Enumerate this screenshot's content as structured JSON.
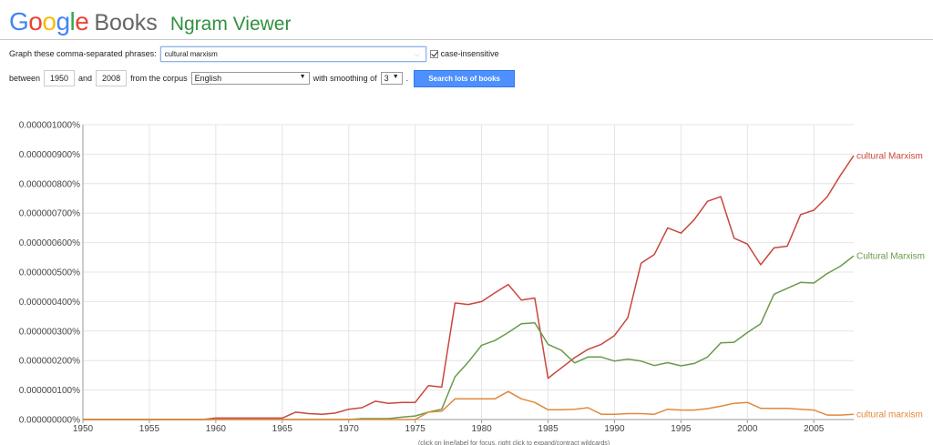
{
  "header": {
    "logo_letters": [
      {
        "ch": "G",
        "color": "#4285f4"
      },
      {
        "ch": "o",
        "color": "#ea4335"
      },
      {
        "ch": "o",
        "color": "#fbbc05"
      },
      {
        "ch": "g",
        "color": "#4285f4"
      },
      {
        "ch": "l",
        "color": "#34a853"
      },
      {
        "ch": "e",
        "color": "#ea4335"
      }
    ],
    "books": "Books",
    "title": "Ngram Viewer"
  },
  "form": {
    "phrases_label": "Graph these comma-separated phrases:",
    "phrases_value": "cultural marxism",
    "case_insensitive_label": "case-insensitive",
    "case_insensitive_checked": true,
    "between_label": "between",
    "year_start": "1950",
    "and_label": "and",
    "year_end": "2008",
    "corpus_label": "from the corpus",
    "corpus_value": "English",
    "smoothing_label": "with smoothing of",
    "smoothing_value": "3",
    "smoothing_suffix": ".",
    "search_button": "Search lots of books"
  },
  "chart_data": {
    "type": "line",
    "title": "",
    "xlabel": "",
    "ylabel": "",
    "xlim": [
      1950,
      2008
    ],
    "ylim": [
      0,
      1e-06
    ],
    "grid": true,
    "x_ticks": [
      1950,
      1955,
      1960,
      1965,
      1970,
      1975,
      1980,
      1985,
      1990,
      1995,
      2000,
      2005
    ],
    "y_ticks": [
      "0.000000000%",
      "0.000000100%",
      "0.000000200%",
      "0.000000300%",
      "0.000000400%",
      "0.000000500%",
      "0.000000600%",
      "0.000000700%",
      "0.000000800%",
      "0.000000900%",
      "0.000001000%"
    ],
    "y_tick_values": [
      0,
      1e-07,
      2e-07,
      3e-07,
      4e-07,
      5e-07,
      6e-07,
      7e-07,
      8e-07,
      9e-07,
      1e-06
    ],
    "series": [
      {
        "name": "cultural Marxism",
        "color": "#c8473d",
        "points": [
          [
            1950,
            0
          ],
          [
            1955,
            0
          ],
          [
            1959,
            0
          ],
          [
            1960,
            5e-09
          ],
          [
            1962,
            5e-09
          ],
          [
            1965,
            5e-09
          ],
          [
            1966,
            2.5e-08
          ],
          [
            1967,
            2e-08
          ],
          [
            1968,
            1.8e-08
          ],
          [
            1969,
            2.2e-08
          ],
          [
            1970,
            3.5e-08
          ],
          [
            1971,
            4e-08
          ],
          [
            1972,
            6.2e-08
          ],
          [
            1973,
            5.5e-08
          ],
          [
            1974,
            5.8e-08
          ],
          [
            1975,
            5.8e-08
          ],
          [
            1976,
            1.15e-07
          ],
          [
            1977,
            1.1e-07
          ],
          [
            1978,
            3.95e-07
          ],
          [
            1979,
            3.9e-07
          ],
          [
            1980,
            4e-07
          ],
          [
            1981,
            4.3e-07
          ],
          [
            1982,
            4.58e-07
          ],
          [
            1983,
            4.05e-07
          ],
          [
            1984,
            4.12e-07
          ],
          [
            1985,
            1.4e-07
          ],
          [
            1986,
            1.75e-07
          ],
          [
            1987,
            2.1e-07
          ],
          [
            1988,
            2.38e-07
          ],
          [
            1989,
            2.55e-07
          ],
          [
            1990,
            2.85e-07
          ],
          [
            1991,
            3.45e-07
          ],
          [
            1992,
            5.3e-07
          ],
          [
            1993,
            5.6e-07
          ],
          [
            1994,
            6.5e-07
          ],
          [
            1995,
            6.32e-07
          ],
          [
            1996,
            6.78e-07
          ],
          [
            1997,
            7.4e-07
          ],
          [
            1998,
            7.56e-07
          ],
          [
            1999,
            6.15e-07
          ],
          [
            2000,
            5.95e-07
          ],
          [
            2001,
            5.25e-07
          ],
          [
            2002,
            5.82e-07
          ],
          [
            2003,
            5.88e-07
          ],
          [
            2004,
            6.95e-07
          ],
          [
            2005,
            7.1e-07
          ],
          [
            2006,
            7.55e-07
          ],
          [
            2007,
            8.28e-07
          ],
          [
            2008,
            8.95e-07
          ]
        ]
      },
      {
        "name": "Cultural Marxism",
        "color": "#6a9a4a",
        "points": [
          [
            1950,
            0
          ],
          [
            1960,
            0
          ],
          [
            1965,
            0
          ],
          [
            1970,
            0
          ],
          [
            1971,
            3e-09
          ],
          [
            1972,
            3e-09
          ],
          [
            1973,
            3e-09
          ],
          [
            1974,
            8e-09
          ],
          [
            1975,
            1.2e-08
          ],
          [
            1976,
            2.5e-08
          ],
          [
            1977,
            3.5e-08
          ],
          [
            1978,
            1.45e-07
          ],
          [
            1979,
            1.95e-07
          ],
          [
            1980,
            2.52e-07
          ],
          [
            1981,
            2.68e-07
          ],
          [
            1982,
            2.95e-07
          ],
          [
            1983,
            3.25e-07
          ],
          [
            1984,
            3.28e-07
          ],
          [
            1985,
            2.55e-07
          ],
          [
            1986,
            2.35e-07
          ],
          [
            1987,
            1.92e-07
          ],
          [
            1988,
            2.12e-07
          ],
          [
            1989,
            2.12e-07
          ],
          [
            1990,
            1.98e-07
          ],
          [
            1991,
            2.05e-07
          ],
          [
            1992,
            1.98e-07
          ],
          [
            1993,
            1.83e-07
          ],
          [
            1994,
            1.93e-07
          ],
          [
            1995,
            1.82e-07
          ],
          [
            1996,
            1.9e-07
          ],
          [
            1997,
            2.12e-07
          ],
          [
            1998,
            2.6e-07
          ],
          [
            1999,
            2.62e-07
          ],
          [
            2000,
            2.95e-07
          ],
          [
            2001,
            3.25e-07
          ],
          [
            2002,
            4.25e-07
          ],
          [
            2003,
            4.45e-07
          ],
          [
            2004,
            4.65e-07
          ],
          [
            2005,
            4.63e-07
          ],
          [
            2006,
            4.95e-07
          ],
          [
            2007,
            5.2e-07
          ],
          [
            2008,
            5.55e-07
          ]
        ]
      },
      {
        "name": "cultural marxism",
        "color": "#e0893b",
        "points": [
          [
            1950,
            0
          ],
          [
            1960,
            0
          ],
          [
            1970,
            0
          ],
          [
            1975,
            0
          ],
          [
            1976,
            2.5e-08
          ],
          [
            1977,
            2.8e-08
          ],
          [
            1978,
            7e-08
          ],
          [
            1979,
            7e-08
          ],
          [
            1980,
            7e-08
          ],
          [
            1981,
            7e-08
          ],
          [
            1982,
            9.5e-08
          ],
          [
            1983,
            7e-08
          ],
          [
            1984,
            5.8e-08
          ],
          [
            1985,
            3.3e-08
          ],
          [
            1986,
            3.3e-08
          ],
          [
            1987,
            3.5e-08
          ],
          [
            1988,
            4e-08
          ],
          [
            1989,
            1.8e-08
          ],
          [
            1990,
            1.8e-08
          ],
          [
            1991,
            2e-08
          ],
          [
            1992,
            2e-08
          ],
          [
            1993,
            1.8e-08
          ],
          [
            1994,
            3.5e-08
          ],
          [
            1995,
            3.2e-08
          ],
          [
            1996,
            3.2e-08
          ],
          [
            1997,
            3.7e-08
          ],
          [
            1998,
            4.5e-08
          ],
          [
            1999,
            5.5e-08
          ],
          [
            2000,
            5.8e-08
          ],
          [
            2001,
            3.8e-08
          ],
          [
            2002,
            3.8e-08
          ],
          [
            2003,
            3.8e-08
          ],
          [
            2004,
            3.5e-08
          ],
          [
            2005,
            3.2e-08
          ],
          [
            2006,
            1.5e-08
          ],
          [
            2007,
            1.5e-08
          ],
          [
            2008,
            1.8e-08
          ]
        ]
      }
    ],
    "footnote": "(click on line/label for focus, right click to expand/contract wildcards)"
  }
}
